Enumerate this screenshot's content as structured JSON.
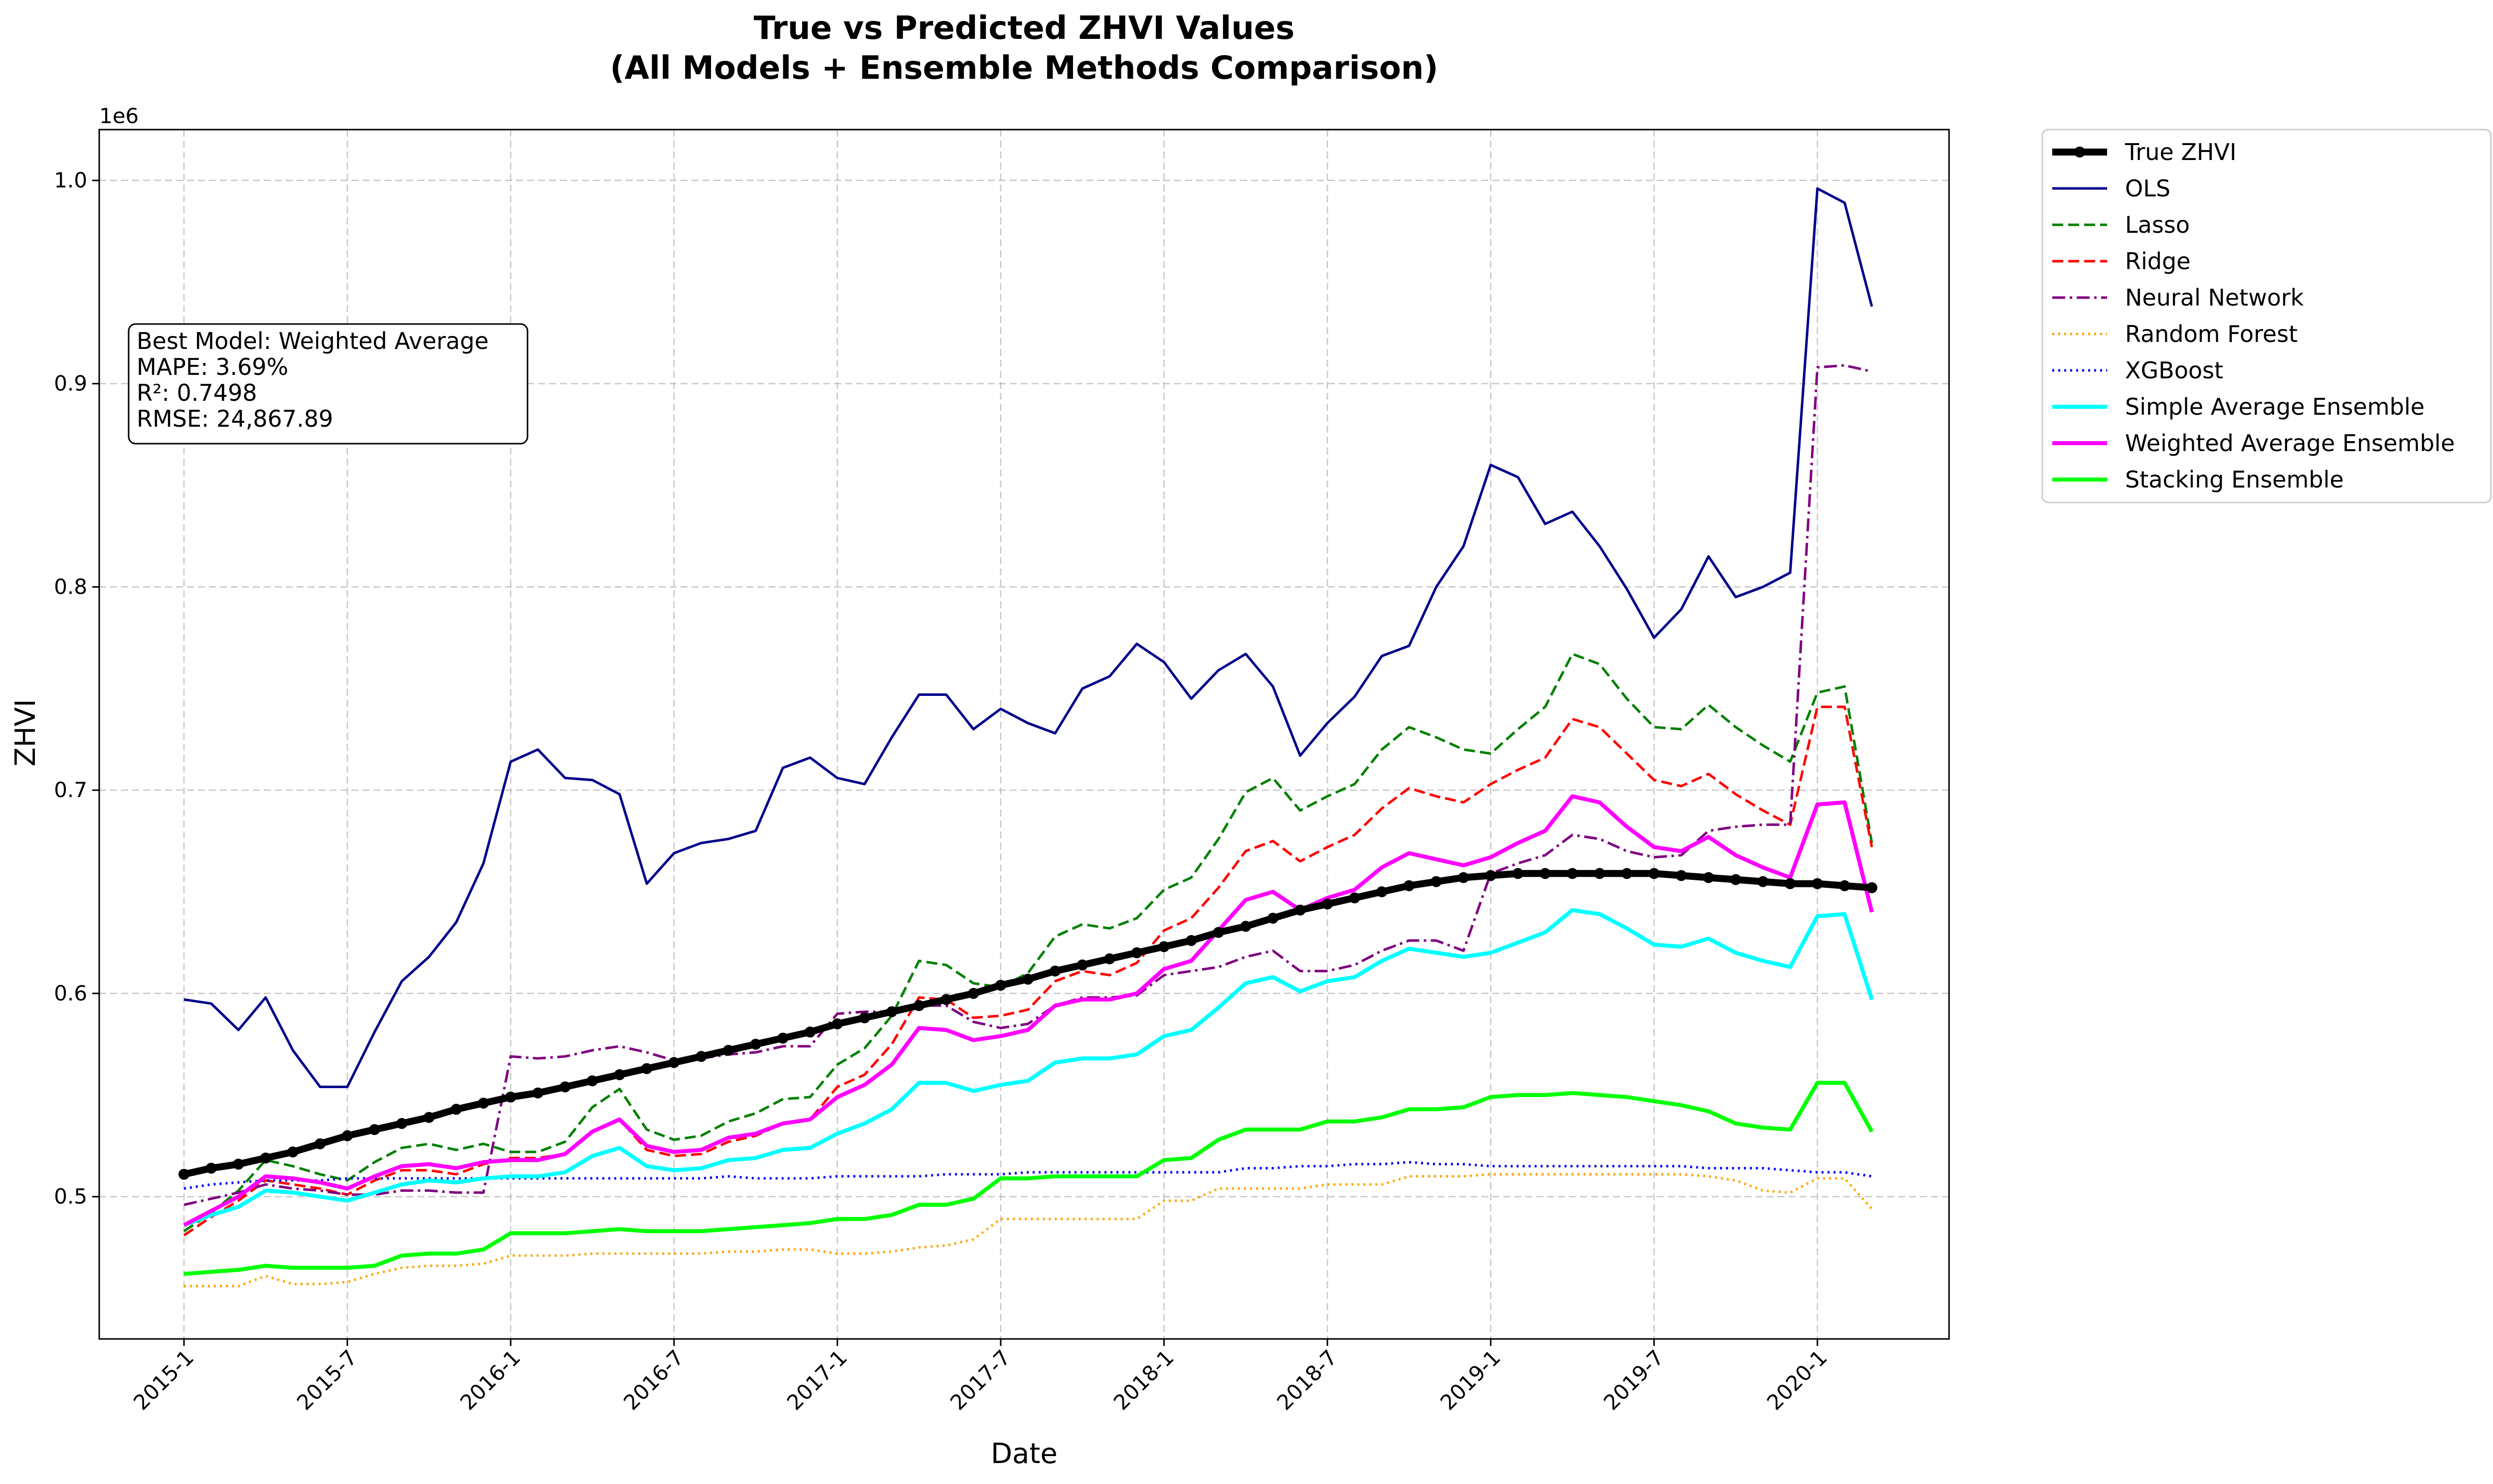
{
  "chart_data": {
    "type": "line",
    "title_line1": "True vs Predicted ZHVI Values",
    "title_line2": "(All Models + Ensemble Methods Comparison)",
    "xlabel": "Date",
    "ylabel": "ZHVI",
    "y_offset_label": "1e6",
    "ylim": [
      0.43,
      1.025
    ],
    "y_unit": "millions of dollars (×1e6)",
    "yticks": [
      0.5,
      0.6,
      0.7,
      0.8,
      0.9,
      1.0
    ],
    "ytick_labels": [
      "0.5",
      "0.6",
      "0.7",
      "0.8",
      "0.9",
      "1.0"
    ],
    "x_dates": [
      "2015-1",
      "2015-2",
      "2015-3",
      "2015-4",
      "2015-5",
      "2015-6",
      "2015-7",
      "2015-8",
      "2015-9",
      "2015-10",
      "2015-11",
      "2015-12",
      "2016-1",
      "2016-2",
      "2016-3",
      "2016-4",
      "2016-5",
      "2016-6",
      "2016-7",
      "2016-8",
      "2016-9",
      "2016-10",
      "2016-11",
      "2016-12",
      "2017-1",
      "2017-2",
      "2017-3",
      "2017-4",
      "2017-5",
      "2017-6",
      "2017-7",
      "2017-8",
      "2017-9",
      "2017-10",
      "2017-11",
      "2017-12",
      "2018-1",
      "2018-2",
      "2018-3",
      "2018-4",
      "2018-5",
      "2018-6",
      "2018-7",
      "2018-8",
      "2018-9",
      "2018-10",
      "2018-11",
      "2018-12",
      "2019-1",
      "2019-2",
      "2019-3",
      "2019-4",
      "2019-5",
      "2019-6",
      "2019-7",
      "2019-8",
      "2019-9",
      "2019-10",
      "2019-11",
      "2019-12",
      "2020-1",
      "2020-2",
      "2020-3"
    ],
    "xtick_labels": [
      "2015-1",
      "2015-7",
      "2016-1",
      "2016-7",
      "2017-1",
      "2017-7",
      "2018-1",
      "2018-7",
      "2019-1",
      "2019-7",
      "2020-1"
    ],
    "grid": true,
    "legend_placement": "outside top-right",
    "series": [
      {
        "name": "True ZHVI",
        "color": "#000000",
        "style": "solid-markers",
        "values": [
          0.511,
          0.514,
          0.516,
          0.519,
          0.522,
          0.526,
          0.53,
          0.533,
          0.536,
          0.539,
          0.543,
          0.546,
          0.549,
          0.551,
          0.554,
          0.557,
          0.56,
          0.563,
          0.566,
          0.569,
          0.572,
          0.575,
          0.578,
          0.581,
          0.585,
          0.588,
          0.591,
          0.594,
          0.597,
          0.6,
          0.604,
          0.607,
          0.611,
          0.614,
          0.617,
          0.62,
          0.623,
          0.626,
          0.63,
          0.633,
          0.637,
          0.641,
          0.644,
          0.647,
          0.65,
          0.653,
          0.655,
          0.657,
          0.658,
          0.659,
          0.659,
          0.659,
          0.659,
          0.659,
          0.659,
          0.658,
          0.657,
          0.656,
          0.655,
          0.654,
          0.654,
          0.653,
          0.652
        ]
      },
      {
        "name": "OLS",
        "color": "#00008b",
        "style": "solid",
        "values": [
          0.597,
          0.595,
          0.582,
          0.598,
          0.572,
          0.554,
          0.554,
          0.581,
          0.606,
          0.618,
          0.635,
          0.664,
          0.714,
          0.72,
          0.706,
          0.705,
          0.698,
          0.654,
          0.669,
          0.674,
          0.676,
          0.68,
          0.711,
          0.716,
          0.706,
          0.703,
          0.726,
          0.747,
          0.747,
          0.73,
          0.74,
          0.733,
          0.728,
          0.75,
          0.756,
          0.772,
          0.763,
          0.745,
          0.759,
          0.767,
          0.751,
          0.717,
          0.733,
          0.746,
          0.766,
          0.771,
          0.8,
          0.82,
          0.86,
          0.854,
          0.831,
          0.837,
          0.82,
          0.799,
          0.775,
          0.789,
          0.815,
          0.795,
          0.8,
          0.807,
          0.996,
          0.989,
          0.938
        ]
      },
      {
        "name": "Lasso",
        "color": "#008000",
        "style": "dashed",
        "values": [
          0.483,
          0.492,
          0.503,
          0.518,
          0.515,
          0.511,
          0.508,
          0.517,
          0.524,
          0.526,
          0.523,
          0.526,
          0.522,
          0.522,
          0.527,
          0.544,
          0.553,
          0.533,
          0.528,
          0.53,
          0.537,
          0.541,
          0.548,
          0.549,
          0.565,
          0.573,
          0.589,
          0.616,
          0.614,
          0.605,
          0.603,
          0.61,
          0.628,
          0.634,
          0.632,
          0.637,
          0.651,
          0.657,
          0.676,
          0.699,
          0.706,
          0.69,
          0.697,
          0.703,
          0.72,
          0.731,
          0.726,
          0.72,
          0.718,
          0.73,
          0.741,
          0.767,
          0.762,
          0.745,
          0.731,
          0.73,
          0.742,
          0.731,
          0.722,
          0.714,
          0.748,
          0.751,
          0.674
        ]
      },
      {
        "name": "Ridge",
        "color": "#ff0000",
        "style": "dashed",
        "values": [
          0.481,
          0.49,
          0.498,
          0.508,
          0.506,
          0.504,
          0.501,
          0.508,
          0.513,
          0.513,
          0.511,
          0.516,
          0.519,
          0.519,
          0.521,
          0.532,
          0.538,
          0.523,
          0.52,
          0.521,
          0.527,
          0.53,
          0.536,
          0.538,
          0.554,
          0.56,
          0.575,
          0.598,
          0.597,
          0.588,
          0.589,
          0.592,
          0.606,
          0.611,
          0.609,
          0.615,
          0.631,
          0.637,
          0.652,
          0.67,
          0.675,
          0.665,
          0.672,
          0.678,
          0.691,
          0.701,
          0.697,
          0.694,
          0.703,
          0.71,
          0.716,
          0.735,
          0.731,
          0.718,
          0.705,
          0.702,
          0.708,
          0.698,
          0.69,
          0.683,
          0.741,
          0.741,
          0.672
        ]
      },
      {
        "name": "Neural Network",
        "color": "#800080",
        "style": "dashdot",
        "values": [
          0.496,
          0.499,
          0.502,
          0.506,
          0.504,
          0.503,
          0.501,
          0.501,
          0.503,
          0.503,
          0.502,
          0.502,
          0.569,
          0.568,
          0.569,
          0.572,
          0.574,
          0.571,
          0.567,
          0.568,
          0.57,
          0.571,
          0.574,
          0.574,
          0.59,
          0.591,
          0.591,
          0.594,
          0.594,
          0.586,
          0.583,
          0.585,
          0.594,
          0.598,
          0.598,
          0.599,
          0.609,
          0.611,
          0.613,
          0.618,
          0.621,
          0.611,
          0.611,
          0.614,
          0.621,
          0.626,
          0.626,
          0.621,
          0.659,
          0.664,
          0.668,
          0.678,
          0.676,
          0.67,
          0.667,
          0.668,
          0.68,
          0.682,
          0.683,
          0.683,
          0.908,
          0.909,
          0.906
        ]
      },
      {
        "name": "Random Forest",
        "color": "#ffa500",
        "style": "dotted",
        "values": [
          0.456,
          0.456,
          0.456,
          0.461,
          0.457,
          0.457,
          0.458,
          0.462,
          0.465,
          0.466,
          0.466,
          0.467,
          0.471,
          0.471,
          0.471,
          0.472,
          0.472,
          0.472,
          0.472,
          0.472,
          0.473,
          0.473,
          0.474,
          0.474,
          0.472,
          0.472,
          0.473,
          0.475,
          0.476,
          0.479,
          0.489,
          0.489,
          0.489,
          0.489,
          0.489,
          0.489,
          0.498,
          0.498,
          0.504,
          0.504,
          0.504,
          0.504,
          0.506,
          0.506,
          0.506,
          0.51,
          0.51,
          0.51,
          0.511,
          0.511,
          0.511,
          0.511,
          0.511,
          0.511,
          0.511,
          0.511,
          0.51,
          0.508,
          0.503,
          0.502,
          0.509,
          0.509,
          0.494
        ]
      },
      {
        "name": "XGBoost",
        "color": "#0000ff",
        "style": "dotted",
        "values": [
          0.504,
          0.506,
          0.507,
          0.508,
          0.508,
          0.508,
          0.509,
          0.509,
          0.509,
          0.509,
          0.509,
          0.509,
          0.509,
          0.509,
          0.509,
          0.509,
          0.509,
          0.509,
          0.509,
          0.509,
          0.51,
          0.509,
          0.509,
          0.509,
          0.51,
          0.51,
          0.51,
          0.51,
          0.511,
          0.511,
          0.511,
          0.512,
          0.512,
          0.512,
          0.512,
          0.512,
          0.512,
          0.512,
          0.512,
          0.514,
          0.514,
          0.515,
          0.515,
          0.516,
          0.516,
          0.517,
          0.516,
          0.516,
          0.515,
          0.515,
          0.515,
          0.515,
          0.515,
          0.515,
          0.515,
          0.515,
          0.514,
          0.514,
          0.514,
          0.513,
          0.512,
          0.512,
          0.51
        ]
      },
      {
        "name": "Simple Average Ensemble",
        "color": "#00ffff",
        "style": "solid",
        "values": [
          0.486,
          0.491,
          0.495,
          0.503,
          0.502,
          0.5,
          0.498,
          0.502,
          0.506,
          0.508,
          0.507,
          0.509,
          0.51,
          0.51,
          0.512,
          0.52,
          0.524,
          0.515,
          0.513,
          0.514,
          0.518,
          0.519,
          0.523,
          0.524,
          0.531,
          0.536,
          0.543,
          0.556,
          0.556,
          0.552,
          0.555,
          0.557,
          0.566,
          0.568,
          0.568,
          0.57,
          0.579,
          0.582,
          0.593,
          0.605,
          0.608,
          0.601,
          0.606,
          0.608,
          0.616,
          0.622,
          0.62,
          0.618,
          0.62,
          0.625,
          0.63,
          0.641,
          0.639,
          0.632,
          0.624,
          0.623,
          0.627,
          0.62,
          0.616,
          0.613,
          0.638,
          0.639,
          0.597
        ]
      },
      {
        "name": "Weighted Average Ensemble",
        "color": "#ff00ff",
        "style": "solid",
        "values": [
          0.486,
          0.493,
          0.5,
          0.51,
          0.509,
          0.507,
          0.504,
          0.51,
          0.515,
          0.516,
          0.514,
          0.517,
          0.518,
          0.518,
          0.521,
          0.532,
          0.538,
          0.525,
          0.522,
          0.523,
          0.529,
          0.531,
          0.536,
          0.538,
          0.549,
          0.555,
          0.565,
          0.583,
          0.582,
          0.577,
          0.579,
          0.582,
          0.594,
          0.597,
          0.597,
          0.6,
          0.612,
          0.616,
          0.631,
          0.646,
          0.65,
          0.641,
          0.647,
          0.651,
          0.662,
          0.669,
          0.666,
          0.663,
          0.667,
          0.674,
          0.68,
          0.697,
          0.694,
          0.682,
          0.672,
          0.67,
          0.677,
          0.668,
          0.662,
          0.657,
          0.693,
          0.694,
          0.64
        ]
      },
      {
        "name": "Stacking Ensemble",
        "color": "#00ff00",
        "style": "solid",
        "values": [
          0.462,
          0.463,
          0.464,
          0.466,
          0.465,
          0.465,
          0.465,
          0.466,
          0.471,
          0.472,
          0.472,
          0.474,
          0.482,
          0.482,
          0.482,
          0.483,
          0.484,
          0.483,
          0.483,
          0.483,
          0.484,
          0.485,
          0.486,
          0.487,
          0.489,
          0.489,
          0.491,
          0.496,
          0.496,
          0.499,
          0.509,
          0.509,
          0.51,
          0.51,
          0.51,
          0.51,
          0.518,
          0.519,
          0.528,
          0.533,
          0.533,
          0.533,
          0.537,
          0.537,
          0.539,
          0.543,
          0.543,
          0.544,
          0.549,
          0.55,
          0.55,
          0.551,
          0.55,
          0.549,
          0.547,
          0.545,
          0.542,
          0.536,
          0.534,
          0.533,
          0.556,
          0.556,
          0.532
        ]
      }
    ],
    "annotation": {
      "line1": "Best Model: Weighted Average",
      "line2": "MAPE: 3.69%",
      "line3": "R²: 0.7498",
      "line4": "RMSE: 24,867.89"
    }
  }
}
